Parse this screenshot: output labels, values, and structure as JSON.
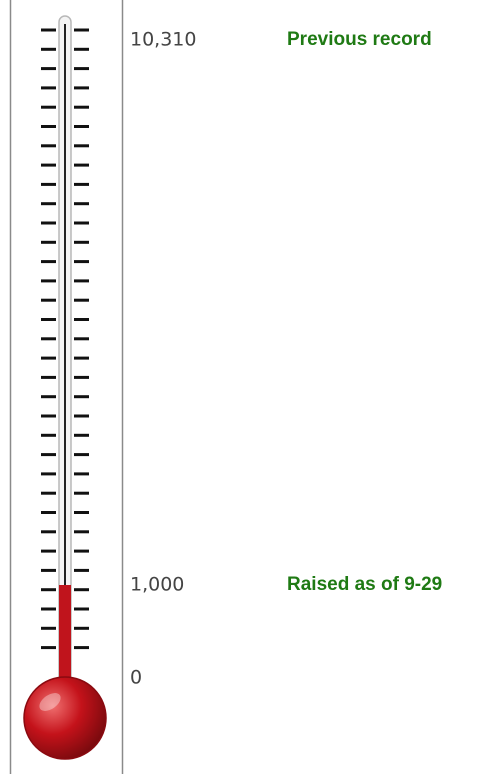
{
  "chart_data": {
    "type": "thermometer",
    "value": 1000,
    "color": "#c0141c",
    "ylim": [
      0,
      10310
    ],
    "yticks": [
      0,
      {
        "value": 1000,
        "label": "1,000"
      },
      {
        "value": 10310,
        "label": "10,310"
      }
    ],
    "annotations": [
      {
        "text": "Previous record",
        "value": 10310
      },
      {
        "text": "Raised as of 9-29",
        "value": 1000
      }
    ]
  }
}
